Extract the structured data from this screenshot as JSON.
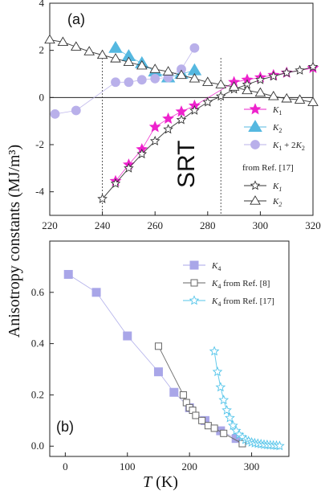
{
  "figure": {
    "ylabel": "Anisotropy constants (MJ/m³)",
    "xlabel_T": "T",
    "xlabel_unit": " (K)"
  },
  "chart_data": [
    {
      "type": "scatter",
      "panel_label": "(a)",
      "annotation": "SRT",
      "xlim": [
        220,
        320
      ],
      "ylim": [
        -5,
        4
      ],
      "xticks": [
        220,
        240,
        260,
        280,
        300,
        320
      ],
      "yticks": [
        -4,
        -2,
        0,
        2,
        4
      ],
      "vlines": [
        240,
        285
      ],
      "hline": 0,
      "legend_position": "right",
      "legend_ref_title": "from Ref. [17]",
      "series": [
        {
          "name": "K1",
          "label_main": "K",
          "label_sub": "1",
          "label_sub_italic": false,
          "color": "#ee22cc",
          "marker": "star-filled",
          "x": [
            245,
            250,
            255,
            260,
            265,
            270,
            275,
            290,
            295,
            300,
            305,
            310,
            320
          ],
          "y": [
            -3.55,
            -2.85,
            -2.2,
            -1.25,
            -0.9,
            -0.6,
            -0.35,
            0.65,
            0.75,
            0.85,
            0.95,
            1.05,
            1.25
          ]
        },
        {
          "name": "K2",
          "label_main": "K",
          "label_sub": "2",
          "label_sub_italic": false,
          "color": "#55b8e0",
          "marker": "triangle-filled",
          "x": [
            245,
            250,
            255,
            260,
            265,
            270,
            275
          ],
          "y": [
            2.1,
            1.75,
            1.45,
            1.1,
            0.85,
            1.0,
            1.15
          ]
        },
        {
          "name": "K1 + 2K2",
          "label_main": "K",
          "label_sub": "1",
          "label_rest": " + 2",
          "label_main2": "K",
          "label_sub2": "2",
          "color": "#b9b0ea",
          "marker": "circle-filled",
          "x": [
            222,
            230,
            245,
            250,
            255,
            260,
            265,
            270,
            275
          ],
          "y": [
            -0.7,
            -0.55,
            0.65,
            0.65,
            0.75,
            0.8,
            0.85,
            1.2,
            2.1
          ]
        },
        {
          "name": "K1 from Ref. [17]",
          "label_main": "K",
          "label_sub": "1",
          "label_sub_italic": true,
          "color": "#333333",
          "marker": "star-open",
          "x": [
            240,
            245,
            250,
            255,
            260,
            265,
            270,
            275,
            280,
            285,
            290,
            295,
            300,
            305,
            310,
            315,
            320
          ],
          "y": [
            -4.3,
            -3.65,
            -3.0,
            -2.4,
            -1.85,
            -1.35,
            -0.95,
            -0.55,
            -0.2,
            0.05,
            0.35,
            0.55,
            0.75,
            0.9,
            1.05,
            1.15,
            1.3
          ]
        },
        {
          "name": "K2 from Ref. [17]",
          "label_main": "K",
          "label_sub": "2",
          "label_sub_italic": true,
          "color": "#333333",
          "marker": "triangle-open",
          "x": [
            220,
            225,
            230,
            235,
            240,
            245,
            250,
            255,
            260,
            265,
            270,
            275,
            280,
            285,
            290,
            295,
            300,
            305,
            310,
            315,
            320
          ],
          "y": [
            2.45,
            2.35,
            2.15,
            1.95,
            1.8,
            1.65,
            1.5,
            1.35,
            1.2,
            1.1,
            0.95,
            0.8,
            0.65,
            0.55,
            0.45,
            0.3,
            0.2,
            0.05,
            -0.05,
            -0.1,
            -0.2
          ]
        }
      ]
    },
    {
      "type": "scatter",
      "panel_label": "(b)",
      "xlim": [
        -25,
        360
      ],
      "ylim": [
        -0.04,
        0.8
      ],
      "xticks": [
        0,
        100,
        200,
        300
      ],
      "yticks": [
        0.0,
        0.2,
        0.4,
        0.6
      ],
      "legend_position": "top-right",
      "series": [
        {
          "name": "K4",
          "label_main": "K",
          "label_sub": "4",
          "label_rest": "",
          "color": "#a9a6e8",
          "marker": "square-filled",
          "x": [
            5,
            50,
            100,
            150,
            175,
            200,
            225,
            250,
            275
          ],
          "y": [
            0.67,
            0.6,
            0.43,
            0.29,
            0.21,
            0.15,
            0.1,
            0.06,
            0.03
          ]
        },
        {
          "name": "K4 from Ref. [8]",
          "label_main": "K",
          "label_sub": "4",
          "label_rest": " from Ref. [8]",
          "color": "#666666",
          "marker": "square-open",
          "x": [
            150,
            190,
            195,
            200,
            205,
            210,
            220,
            230,
            240,
            255,
            285
          ],
          "y": [
            0.39,
            0.2,
            0.17,
            0.15,
            0.14,
            0.12,
            0.1,
            0.08,
            0.07,
            0.05,
            0.01
          ]
        },
        {
          "name": "K4 from Ref. [17]",
          "label_main": "K",
          "label_sub": "4",
          "label_rest": " from Ref. [17]",
          "color": "#55c5ea",
          "marker": "star-open",
          "x": [
            240,
            245,
            250,
            255,
            260,
            265,
            270,
            275,
            280,
            285,
            290,
            295,
            300,
            305,
            310,
            315,
            320,
            325,
            330,
            335,
            340,
            345
          ],
          "y": [
            0.37,
            0.29,
            0.23,
            0.18,
            0.14,
            0.11,
            0.08,
            0.06,
            0.045,
            0.035,
            0.025,
            0.02,
            0.015,
            0.012,
            0.01,
            0.008,
            0.006,
            0.005,
            0.004,
            0.003,
            0.002,
            0.001
          ]
        }
      ]
    }
  ]
}
